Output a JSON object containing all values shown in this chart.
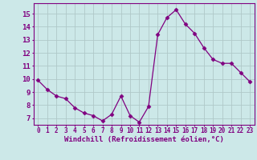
{
  "x": [
    0,
    1,
    2,
    3,
    4,
    5,
    6,
    7,
    8,
    9,
    10,
    11,
    12,
    13,
    14,
    15,
    16,
    17,
    18,
    19,
    20,
    21,
    22,
    23
  ],
  "y": [
    9.9,
    9.2,
    8.7,
    8.5,
    7.8,
    7.4,
    7.2,
    6.8,
    7.3,
    8.7,
    7.2,
    6.7,
    7.9,
    13.4,
    14.7,
    15.3,
    14.2,
    13.5,
    12.4,
    11.5,
    11.2,
    11.2,
    10.5,
    9.8
  ],
  "line_color": "#800080",
  "marker": "D",
  "marker_size": 2.5,
  "bg_color": "#cce8e8",
  "grid_color": "#b0c8c8",
  "xlabel": "Windchill (Refroidissement éolien,°C)",
  "xlabel_color": "#800080",
  "ylabel_ticks": [
    7,
    8,
    9,
    10,
    11,
    12,
    13,
    14,
    15
  ],
  "xtick_labels": [
    "0",
    "1",
    "2",
    "3",
    "4",
    "5",
    "6",
    "7",
    "8",
    "9",
    "10",
    "11",
    "12",
    "13",
    "14",
    "15",
    "16",
    "17",
    "18",
    "19",
    "20",
    "21",
    "22",
    "23"
  ],
  "ylim": [
    6.5,
    15.8
  ],
  "xlim": [
    -0.5,
    23.5
  ],
  "tick_color": "#800080",
  "tick_fontsize": 5.5,
  "xlabel_fontsize": 6.5,
  "linewidth": 0.9
}
